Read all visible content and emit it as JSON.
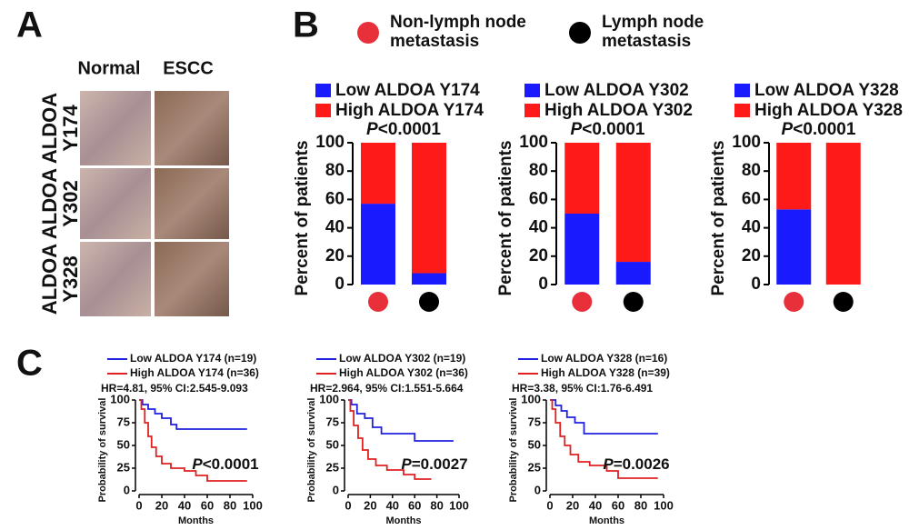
{
  "panel_labels": [
    "A",
    "B",
    "C"
  ],
  "panel_a": {
    "columns": [
      "Normal",
      "ESCC"
    ],
    "rows": [
      [
        "ALDOA",
        "Y174"
      ],
      [
        "ALDOA",
        "Y302"
      ],
      [
        "ALDOA",
        "Y328"
      ]
    ]
  },
  "panel_b_legend": [
    {
      "label": [
        "Non-lymph node",
        "metastasis"
      ],
      "color": "#e8303a"
    },
    {
      "label": [
        "Lymph node",
        "metastasis"
      ],
      "color": "#000000"
    }
  ],
  "chart_data": [
    {
      "type": "bar",
      "stacked": true,
      "categories": [
        null,
        null
      ],
      "series": [
        {
          "name": "Low ALDOA Y174",
          "color": "#1a1aff",
          "values": [
            57,
            8
          ]
        },
        {
          "name": "High ALDOA Y174",
          "color": "#ff1a1a",
          "values": [
            43,
            92
          ]
        }
      ],
      "annotation": {
        "italic": "P",
        "text": "<0.0001"
      },
      "ylabel": "Percent of patients",
      "ylim": [
        0,
        100
      ],
      "yticks": [
        0,
        20,
        40,
        60,
        80,
        100
      ]
    },
    {
      "type": "bar",
      "stacked": true,
      "categories": [
        null,
        null
      ],
      "series": [
        {
          "name": "Low ALDOA Y302",
          "color": "#1a1aff",
          "values": [
            50,
            16
          ]
        },
        {
          "name": "High ALDOA Y302",
          "color": "#ff1a1a",
          "values": [
            50,
            84
          ]
        }
      ],
      "annotation": {
        "italic": "P",
        "text": "<0.0001"
      },
      "ylabel": "Percent of patients",
      "ylim": [
        0,
        100
      ],
      "yticks": [
        0,
        20,
        40,
        60,
        80,
        100
      ]
    },
    {
      "type": "bar",
      "stacked": true,
      "categories": [
        null,
        null
      ],
      "series": [
        {
          "name": "Low ALDOA Y328",
          "color": "#1a1aff",
          "values": [
            53,
            0
          ]
        },
        {
          "name": "High ALDOA Y328",
          "color": "#ff1a1a",
          "values": [
            47,
            100
          ]
        }
      ],
      "annotation": {
        "italic": "P",
        "text": "<0.0001"
      },
      "ylabel": "Percent of patients",
      "ylim": [
        0,
        100
      ],
      "yticks": [
        0,
        20,
        40,
        60,
        80,
        100
      ]
    },
    {
      "type": "line",
      "series": [
        {
          "name": "Low ALDOA Y174 (n=19)",
          "color": "#2020e0",
          "x": [
            0,
            3,
            3,
            8,
            8,
            14,
            14,
            20,
            20,
            28,
            28,
            33,
            33,
            95
          ],
          "values": [
            100,
            100,
            95,
            95,
            90,
            90,
            85,
            85,
            80,
            80,
            73,
            73,
            68,
            68
          ]
        },
        {
          "name": "High ALDOA Y174 (n=36)",
          "color": "#e02020",
          "x": [
            0,
            2,
            2,
            5,
            5,
            8,
            8,
            11,
            11,
            15,
            15,
            20,
            20,
            28,
            28,
            40,
            40,
            50,
            50,
            60,
            60,
            95
          ],
          "values": [
            100,
            100,
            90,
            90,
            75,
            75,
            60,
            60,
            48,
            48,
            38,
            38,
            30,
            30,
            25,
            25,
            22,
            22,
            17,
            17,
            11,
            11
          ]
        }
      ],
      "annotation": "HR=4.81, 95% CI:2.545-9.093",
      "p_value": {
        "italic": "P",
        "text": "<0.0001"
      },
      "xlabel": "Months",
      "ylabel": "Probability of survival",
      "xlim": [
        0,
        100
      ],
      "ylim": [
        0,
        100
      ],
      "xticks": [
        0,
        20,
        40,
        60,
        80,
        100
      ],
      "yticks": [
        0,
        25,
        50,
        75,
        100
      ]
    },
    {
      "type": "line",
      "series": [
        {
          "name": "Low ALDOA Y302 (n=19)",
          "color": "#2020e0",
          "x": [
            0,
            3,
            3,
            8,
            8,
            15,
            15,
            22,
            22,
            30,
            30,
            60,
            60,
            95
          ],
          "values": [
            100,
            100,
            95,
            95,
            85,
            85,
            80,
            80,
            70,
            70,
            63,
            63,
            55,
            55
          ]
        },
        {
          "name": "High ALDOA Y302 (n=36)",
          "color": "#e02020",
          "x": [
            0,
            2,
            2,
            5,
            5,
            9,
            9,
            13,
            13,
            18,
            18,
            25,
            25,
            35,
            35,
            50,
            50,
            60,
            60,
            75
          ],
          "values": [
            100,
            100,
            88,
            88,
            72,
            72,
            58,
            58,
            45,
            45,
            35,
            35,
            28,
            28,
            23,
            23,
            18,
            18,
            13,
            13
          ]
        }
      ],
      "annotation": "HR=2.964, 95% CI:1.551-5.664",
      "p_value": {
        "italic": "P",
        "text": "=0.0027"
      },
      "xlabel": "Months",
      "ylabel": "Probability of survival",
      "xlim": [
        0,
        100
      ],
      "ylim": [
        0,
        100
      ],
      "xticks": [
        0,
        20,
        40,
        60,
        80,
        100
      ],
      "yticks": [
        0,
        25,
        50,
        75,
        100
      ]
    },
    {
      "type": "line",
      "series": [
        {
          "name": "Low ALDOA Y328 (n=16)",
          "color": "#2020e0",
          "x": [
            0,
            5,
            5,
            10,
            10,
            15,
            15,
            22,
            22,
            30,
            30,
            95
          ],
          "values": [
            100,
            100,
            94,
            94,
            88,
            88,
            81,
            81,
            75,
            75,
            63,
            63
          ]
        },
        {
          "name": "High ALDOA Y328 (n=39)",
          "color": "#e02020",
          "x": [
            0,
            2,
            2,
            5,
            5,
            9,
            9,
            13,
            13,
            18,
            18,
            25,
            25,
            35,
            35,
            50,
            50,
            60,
            60,
            95
          ],
          "values": [
            100,
            100,
            90,
            90,
            75,
            75,
            60,
            60,
            50,
            50,
            40,
            40,
            32,
            32,
            28,
            28,
            22,
            22,
            14,
            14
          ]
        }
      ],
      "annotation": "HR=3.38, 95% CI:1.76-6.491",
      "p_value": {
        "italic": "P",
        "text": "=0.0026"
      },
      "xlabel": "Months",
      "ylabel": "Probability of survival",
      "xlim": [
        0,
        100
      ],
      "ylim": [
        0,
        100
      ],
      "xticks": [
        0,
        20,
        40,
        60,
        80,
        100
      ],
      "yticks": [
        0,
        25,
        50,
        75,
        100
      ]
    }
  ]
}
